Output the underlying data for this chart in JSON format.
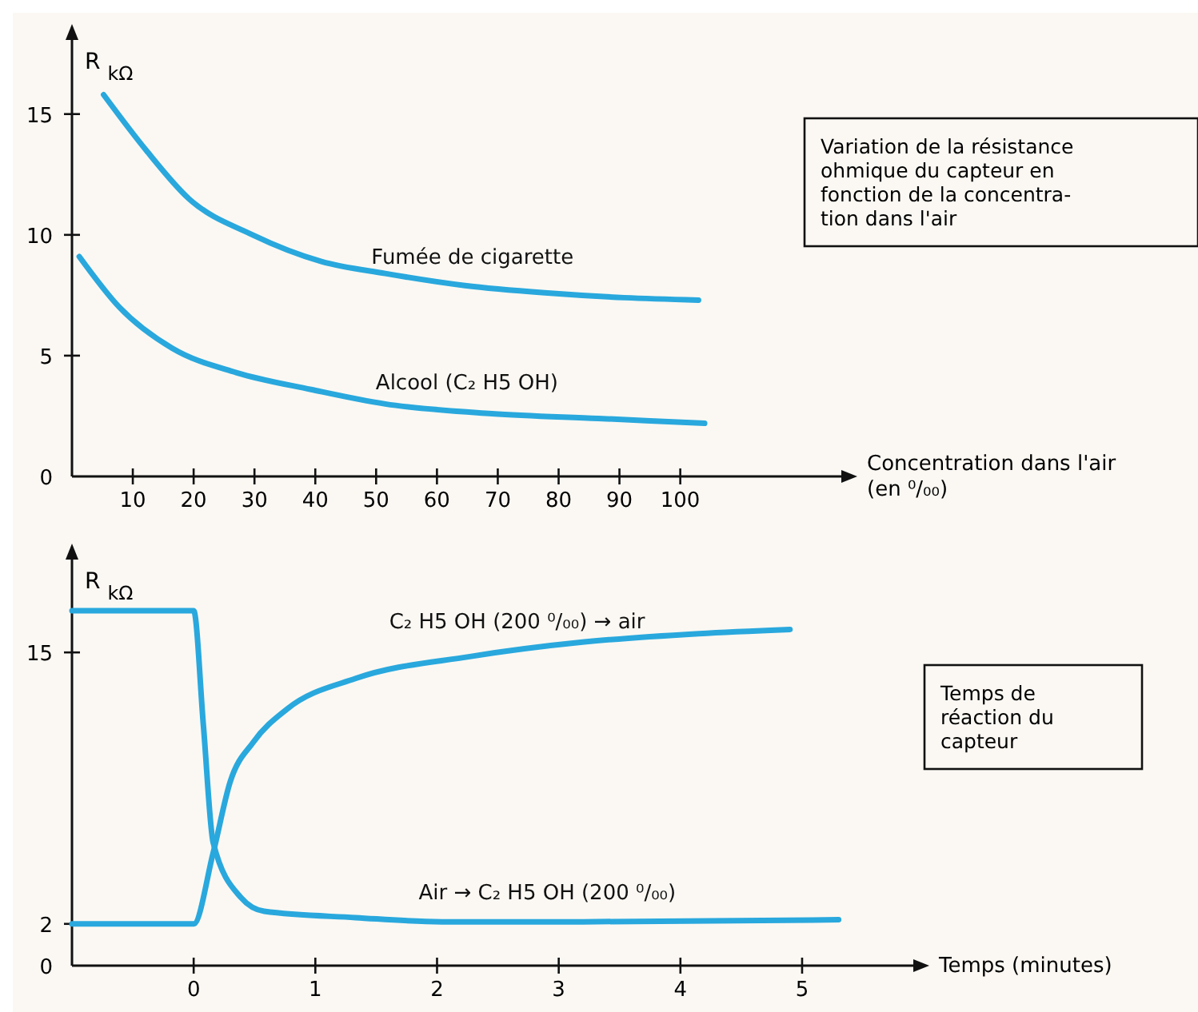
{
  "chart_data": [
    {
      "type": "line",
      "ylabel": "R $_{kΩ}$",
      "xlabel": "Concentration dans l'air (en ⁰/₀₀)",
      "xlim": [
        0,
        127
      ],
      "ylim": [
        0,
        18.2
      ],
      "xticks": [
        10,
        20,
        30,
        40,
        50,
        60,
        70,
        80,
        90,
        100
      ],
      "yticks": [
        0,
        5,
        10,
        15
      ],
      "annotations": [
        "Variation de la résistance ohmique du capteur en fonction de la concentra- tion dans l'air"
      ],
      "series": [
        {
          "name": "Fumée de cigarette",
          "color": "#29a8dd",
          "x": [
            5.2,
            12.2,
            19.2,
            29.7,
            41,
            51.5,
            64.6,
            77.7,
            90.8,
            103
          ],
          "values": [
            15.8,
            13.5,
            11.5,
            10.0,
            8.9,
            8.4,
            7.9,
            7.6,
            7.4,
            7.3
          ]
        },
        {
          "name": "Alcool (C₂ H5 OH)",
          "color": "#29a8dd",
          "x": [
            1.2,
            7.8,
            16.5,
            27,
            39.3,
            51.5,
            69,
            86.5,
            104
          ],
          "values": [
            9.1,
            7.0,
            5.3,
            4.3,
            3.6,
            3.0,
            2.6,
            2.4,
            2.2
          ]
        }
      ]
    },
    {
      "type": "line",
      "ylabel": "R $_{kΩ}$",
      "xlabel": "Temps (minutes)",
      "xlim": [
        -1,
        5.94
      ],
      "ylim": [
        0,
        19.6
      ],
      "xticks": [
        0,
        1,
        2,
        3,
        4,
        5
      ],
      "yticks": [
        0,
        2,
        15
      ],
      "annotations": [
        "Temps de réaction du capteur"
      ],
      "series": [
        {
          "name": "Air → C₂ H5 OH (200 ⁰/₀₀)",
          "color": "#29a8dd",
          "x": [
            -1,
            0,
            0.08,
            0.16,
            0.39,
            0.58,
            1.33,
            2.04,
            3.2,
            5.3
          ],
          "values": [
            17,
            17,
            11.5,
            5.9,
            3.25,
            2.6,
            2.3,
            2.1,
            2.1,
            2.2
          ]
        },
        {
          "name": "C₂ H5 OH (200 ⁰/₀₀) → air",
          "color": "#29a8dd",
          "x": [
            -1,
            0,
            0.16,
            0.3,
            0.49,
            0.77,
            1.33,
            2.27,
            3.21,
            4.15,
            4.9
          ],
          "values": [
            2,
            2,
            5.4,
            8.8,
            10.7,
            12.3,
            13.75,
            14.8,
            15.5,
            15.9,
            16.1
          ]
        }
      ]
    }
  ]
}
